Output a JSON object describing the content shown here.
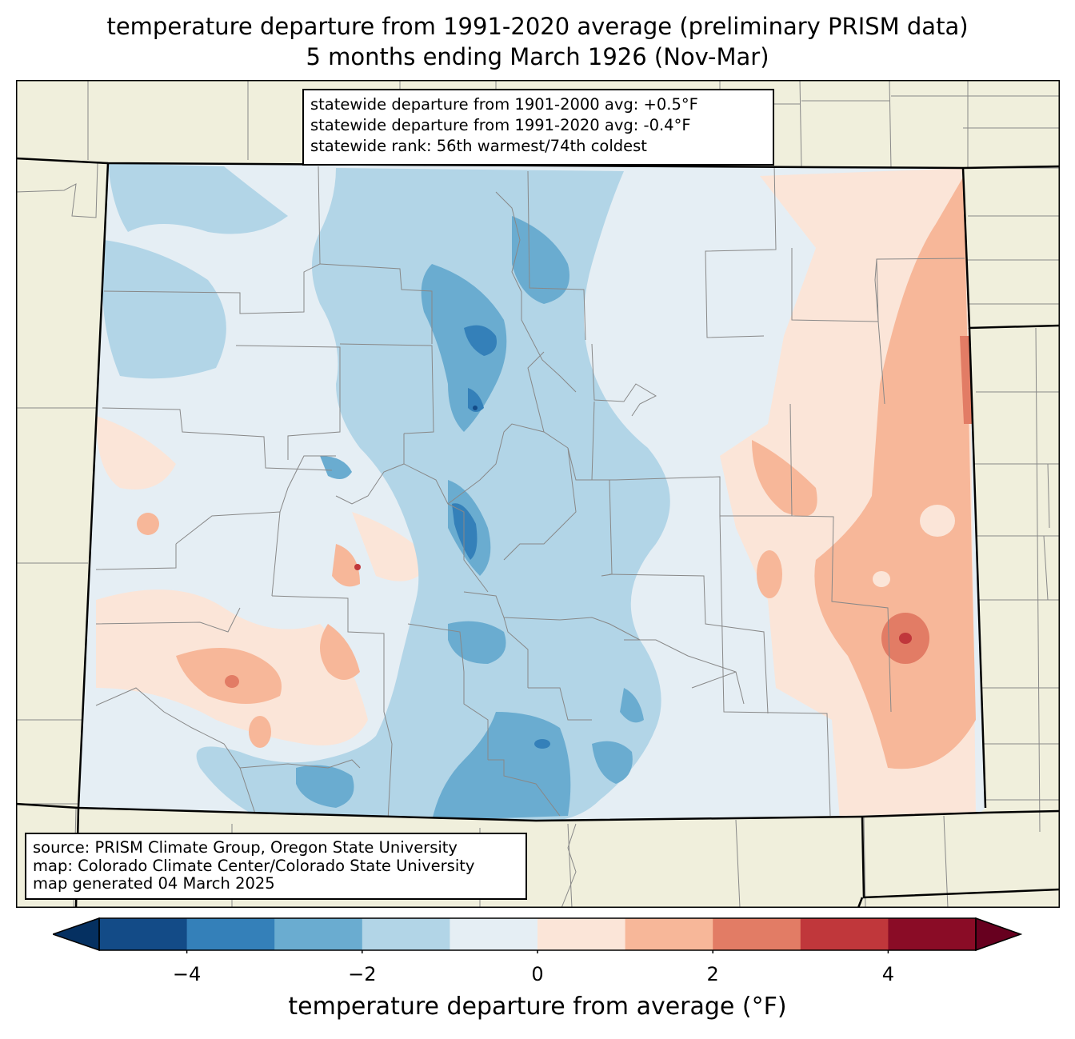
{
  "title": {
    "line1": "temperature departure from 1991-2020 average (preliminary PRISM data)",
    "line2": "5 months ending March 1926 (Nov-Mar)"
  },
  "stats": {
    "line1": "statewide departure from 1901-2000 avg: +0.5°F",
    "line2": "statewide departure from 1991-2020 avg: -0.4°F",
    "line3": "statewide rank: 56th warmest/74th coldest"
  },
  "source": {
    "line1": "source: PRISM Climate Group, Oregon State University",
    "line2": "map: Colorado Climate Center/Colorado State University",
    "line3": "map generated 04 March 2025"
  },
  "colorbar": {
    "label": "temperature departure from average (°F)",
    "ticks": [
      "−4",
      "−2",
      "0",
      "2",
      "4"
    ],
    "tick_values": [
      -4,
      -2,
      0,
      2,
      4
    ],
    "range": [
      -5,
      5
    ],
    "bins": [
      {
        "from": -5,
        "to": -4,
        "color": "#134b87"
      },
      {
        "from": -4,
        "to": -3,
        "color": "#3480b9"
      },
      {
        "from": -3,
        "to": -2,
        "color": "#6aacd0"
      },
      {
        "from": -2,
        "to": -1,
        "color": "#b2d5e7"
      },
      {
        "from": -1,
        "to": 0,
        "color": "#e5eef4"
      },
      {
        "from": 0,
        "to": 1,
        "color": "#fbe5d8"
      },
      {
        "from": 1,
        "to": 2,
        "color": "#f7b799"
      },
      {
        "from": 2,
        "to": 3,
        "color": "#e27c65"
      },
      {
        "from": 3,
        "to": 4,
        "color": "#c0373b"
      },
      {
        "from": 4,
        "to": 5,
        "color": "#8a0c26"
      }
    ],
    "under_color": "#053061",
    "over_color": "#67001f"
  },
  "map_colors": {
    "land": "#f0efdc",
    "county_lines": "#888888",
    "state_lines": "#000000"
  }
}
